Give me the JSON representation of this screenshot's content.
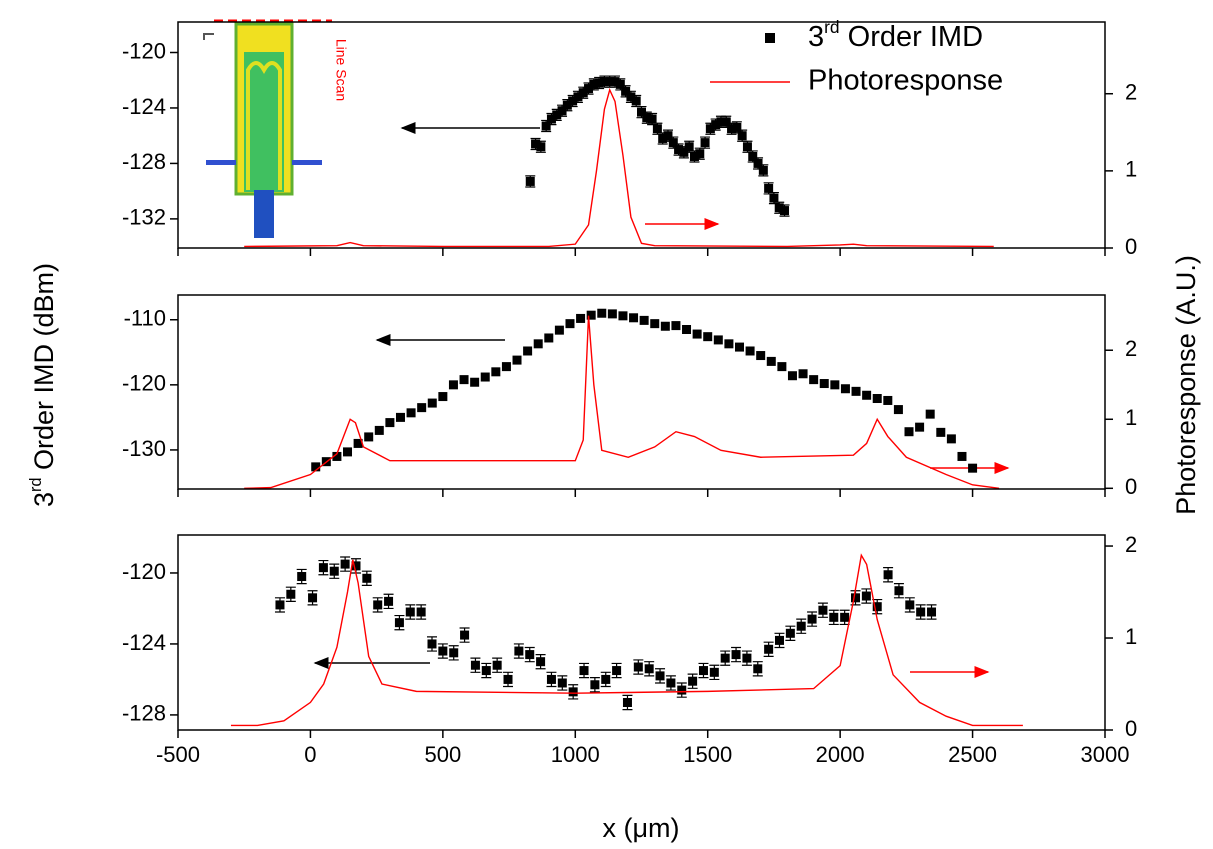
{
  "chart_data": {
    "type": "multi-panel",
    "xlabel": "x (μm)",
    "ylabel": "3rd Order IMD (dBm)",
    "y2label": "Photoresponse (A.U.)",
    "xlim": [
      -500,
      3000
    ],
    "xticks": [
      -500,
      0,
      500,
      1000,
      1500,
      2000,
      2500,
      3000
    ],
    "legend_position": "upper right",
    "inset_label": "Line Scan",
    "panels": [
      {
        "ylim": [
          -134.1,
          -117.8
        ],
        "yticks": [
          -120,
          -124,
          -128,
          -132
        ],
        "y2lim": [
          0,
          2.93
        ],
        "y2ticks": [
          0,
          1,
          2
        ],
        "series": [
          {
            "name": "3rd Order IMD",
            "type": "scatter",
            "color": "#000000",
            "error": 0.4,
            "x": [
              830,
              850,
              870,
              890,
              910,
              930,
              950,
              970,
              990,
              1010,
              1030,
              1050,
              1070,
              1090,
              1110,
              1130,
              1150,
              1170,
              1190,
              1210,
              1230,
              1250,
              1270,
              1290,
              1310,
              1330,
              1350,
              1370,
              1390,
              1410,
              1430,
              1450,
              1470,
              1490,
              1510,
              1530,
              1550,
              1570,
              1590,
              1610,
              1630,
              1650,
              1670,
              1690,
              1710,
              1730,
              1750,
              1770,
              1790
            ],
            "values": [
              -129.3,
              -126.6,
              -126.8,
              -125.3,
              -124.8,
              -124.5,
              -124.2,
              -123.8,
              -123.5,
              -123.2,
              -122.9,
              -122.6,
              -122.3,
              -122.2,
              -122.1,
              -122.1,
              -122.1,
              -122.3,
              -122.8,
              -123.2,
              -123.5,
              -124.3,
              -124.7,
              -124.8,
              -125.5,
              -126.2,
              -126.0,
              -126.5,
              -127.0,
              -127.2,
              -126.8,
              -127.5,
              -127.3,
              -126.5,
              -125.5,
              -125.2,
              -125.0,
              -125.0,
              -125.5,
              -125.4,
              -126.0,
              -126.8,
              -127.5,
              -128.0,
              -128.5,
              -129.8,
              -130.5,
              -131.2,
              -131.4
            ]
          },
          {
            "name": "Photoresponse",
            "type": "line",
            "axis": "y2",
            "color": "#ff0000",
            "x": [
              -250,
              100,
              150,
              200,
              500,
              900,
              1000,
              1050,
              1080,
              1110,
              1130,
              1150,
              1180,
              1210,
              1250,
              1300,
              1800,
              2000,
              2050,
              2100,
              2580
            ],
            "values": [
              0.02,
              0.03,
              0.07,
              0.03,
              0.02,
              0.02,
              0.05,
              0.3,
              1.0,
              1.8,
              2.05,
              1.9,
              1.2,
              0.4,
              0.06,
              0.03,
              0.02,
              0.04,
              0.05,
              0.03,
              0.02
            ]
          }
        ]
      },
      {
        "ylim": [
          -136,
          -106.2
        ],
        "yticks": [
          -110,
          -120,
          -130
        ],
        "y2lim": [
          -0.01,
          2.8
        ],
        "y2ticks": [
          0,
          1,
          2
        ],
        "series": [
          {
            "type": "scatter",
            "color": "#000000",
            "x": [
              20,
              60,
              100,
              140,
              180,
              220,
              260,
              300,
              340,
              380,
              420,
              460,
              500,
              540,
              580,
              620,
              660,
              700,
              740,
              780,
              820,
              860,
              900,
              940,
              980,
              1020,
              1060,
              1100,
              1140,
              1180,
              1220,
              1260,
              1300,
              1340,
              1380,
              1420,
              1460,
              1500,
              1540,
              1580,
              1620,
              1660,
              1700,
              1740,
              1780,
              1820,
              1860,
              1900,
              1940,
              1980,
              2020,
              2060,
              2100,
              2140,
              2180,
              2220,
              2260,
              2300,
              2340,
              2380,
              2420,
              2460,
              2500
            ],
            "values": [
              -132.6,
              -131.8,
              -131,
              -130.3,
              -129,
              -128,
              -127,
              -125.8,
              -125,
              -124.3,
              -123.5,
              -122.8,
              -121.8,
              -120,
              -119.2,
              -119.6,
              -118.8,
              -118,
              -117.2,
              -116.2,
              -114.8,
              -113.7,
              -112.8,
              -111.6,
              -110.6,
              -109.8,
              -109.3,
              -109,
              -109.1,
              -109.4,
              -109.7,
              -110.1,
              -110.6,
              -111,
              -110.9,
              -111.5,
              -112.2,
              -112.6,
              -113.1,
              -113.7,
              -114.2,
              -114.8,
              -115.5,
              -116.4,
              -117.2,
              -118.6,
              -118.3,
              -119.2,
              -119.8,
              -120,
              -120.6,
              -121,
              -121.6,
              -122.1,
              -122.4,
              -123.8,
              -127.2,
              -126.5,
              -124.5,
              -127.3,
              -128.3,
              -131,
              -132.8
            ]
          },
          {
            "type": "line",
            "axis": "y2",
            "color": "#ff0000",
            "x": [
              -250,
              -150,
              0,
              100,
              150,
              170,
              200,
              300,
              1000,
              1030,
              1050,
              1070,
              1100,
              1200,
              1300,
              1380,
              1450,
              1550,
              1700,
              2050,
              2100,
              2140,
              2180,
              2250,
              2400,
              2500,
              2600
            ],
            "values": [
              0,
              0.01,
              0.2,
              0.5,
              1.0,
              0.95,
              0.6,
              0.4,
              0.4,
              0.7,
              2.5,
              1.5,
              0.55,
              0.45,
              0.6,
              0.82,
              0.75,
              0.55,
              0.45,
              0.48,
              0.65,
              1.0,
              0.75,
              0.45,
              0.2,
              0.05,
              0
            ]
          }
        ]
      },
      {
        "ylim": [
          -128.85,
          -117.86
        ],
        "yticks": [
          -120,
          -124,
          -128
        ],
        "y2lim": [
          0,
          2.12
        ],
        "y2ticks": [
          0,
          1,
          2
        ],
        "series": [
          {
            "type": "scatter",
            "color": "#000000",
            "error": 0.4,
            "x": [
              -115,
              -74,
              -33,
              8,
              49,
              90,
              131,
              172,
              213,
              254,
              295,
              336,
              377,
              418,
              459,
              500,
              541,
              582,
              623,
              664,
              705,
              746,
              787,
              828,
              869,
              910,
              951,
              992,
              1033,
              1074,
              1115,
              1156,
              1197,
              1238,
              1279,
              1320,
              1361,
              1402,
              1443,
              1484,
              1525,
              1566,
              1607,
              1648,
              1689,
              1730,
              1771,
              1812,
              1853,
              1894,
              1935,
              1976,
              2017,
              2058,
              2099,
              2140,
              2181,
              2222,
              2263,
              2304,
              2345
            ],
            "values": [
              -121.8,
              -121.2,
              -120.2,
              -121.4,
              -119.7,
              -119.9,
              -119.5,
              -119.6,
              -120.3,
              -121.8,
              -121.6,
              -122.8,
              -122.2,
              -122.2,
              -124.0,
              -124.4,
              -124.5,
              -123.5,
              -125.2,
              -125.5,
              -125.2,
              -126.0,
              -124.4,
              -124.6,
              -125.0,
              -126.0,
              -126.2,
              -126.7,
              -125.5,
              -126.3,
              -126.0,
              -125.5,
              -127.3,
              -125.3,
              -125.4,
              -125.8,
              -126.2,
              -126.6,
              -126.1,
              -125.5,
              -125.6,
              -124.8,
              -124.6,
              -124.8,
              -125.4,
              -124.3,
              -123.8,
              -123.4,
              -123.0,
              -122.6,
              -122.1,
              -122.5,
              -122.5,
              -121.4,
              -121.3,
              -121.9,
              -120.1,
              -121.0,
              -121.8,
              -122.2,
              -122.2
            ]
          },
          {
            "type": "line",
            "axis": "y2",
            "color": "#ff0000",
            "x": [
              -300,
              -200,
              -100,
              0,
              50,
              100,
              140,
              160,
              180,
              220,
              270,
              400,
              1000,
              1500,
              1900,
              2000,
              2050,
              2080,
              2100,
              2140,
              2200,
              2300,
              2400,
              2500,
              2690
            ],
            "values": [
              0.05,
              0.05,
              0.1,
              0.3,
              0.5,
              0.9,
              1.5,
              1.85,
              1.6,
              0.8,
              0.5,
              0.42,
              0.4,
              0.42,
              0.45,
              0.7,
              1.4,
              1.9,
              1.8,
              1.2,
              0.6,
              0.3,
              0.15,
              0.05,
              0.05
            ]
          }
        ]
      }
    ]
  }
}
